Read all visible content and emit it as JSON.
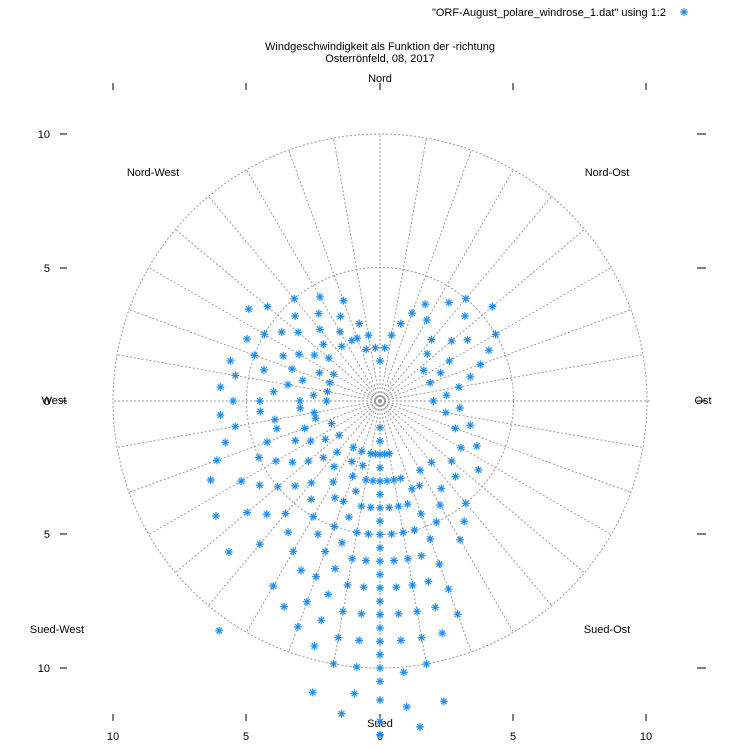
{
  "chart_data": {
    "type": "scatter",
    "coordinate_system": "polar",
    "title": "Windgeschwindigkeit als Funktion der -richtung",
    "subtitle": "Osterrönfeld, 08, 2017",
    "legend": {
      "label": "\"ORF-August_polare_windrose_1.dat\" using 1:2",
      "placement": "top-right"
    },
    "series": [
      {
        "name": "\"ORF-August_polare_windrose_1.dat\" using 1:2",
        "marker": "asterisk",
        "color": "#1f8ef1",
        "points_polar_deg_speed": [
          [
            180,
            12.5
          ],
          [
            180,
            12.0
          ],
          [
            180,
            11.2
          ],
          [
            180,
            10.5
          ],
          [
            180,
            10.0
          ],
          [
            180,
            9.5
          ],
          [
            180,
            9.0
          ],
          [
            180,
            8.5
          ],
          [
            180,
            8.0
          ],
          [
            180,
            7.5
          ],
          [
            180,
            7.0
          ],
          [
            180,
            6.5
          ],
          [
            180,
            6.0
          ],
          [
            180,
            5.5
          ],
          [
            180,
            5.0
          ],
          [
            180,
            4.5
          ],
          [
            180,
            4.0
          ],
          [
            180,
            3.5
          ],
          [
            180,
            3.0
          ],
          [
            180,
            2.5
          ],
          [
            180,
            2.0
          ],
          [
            180,
            1.5
          ],
          [
            180,
            1.0
          ],
          [
            175,
            11.5
          ],
          [
            175,
            10.2
          ],
          [
            175,
            9.0
          ],
          [
            175,
            8.0
          ],
          [
            175,
            7.0
          ],
          [
            175,
            6.0
          ],
          [
            175,
            5.0
          ],
          [
            175,
            4.0
          ],
          [
            175,
            3.0
          ],
          [
            175,
            2.0
          ],
          [
            170,
            10.0
          ],
          [
            170,
            9.0
          ],
          [
            170,
            8.0
          ],
          [
            170,
            7.0
          ],
          [
            170,
            6.0
          ],
          [
            170,
            5.0
          ],
          [
            170,
            4.0
          ],
          [
            170,
            3.0
          ],
          [
            170,
            2.0
          ],
          [
            185,
            11.0
          ],
          [
            185,
            10.0
          ],
          [
            185,
            9.0
          ],
          [
            185,
            8.0
          ],
          [
            185,
            7.0
          ],
          [
            185,
            6.0
          ],
          [
            185,
            5.0
          ],
          [
            185,
            4.0
          ],
          [
            185,
            3.0
          ],
          [
            185,
            2.0
          ],
          [
            190,
            10.0
          ],
          [
            190,
            9.0
          ],
          [
            190,
            8.0
          ],
          [
            190,
            7.0
          ],
          [
            190,
            6.0
          ],
          [
            190,
            5.0
          ],
          [
            190,
            4.0
          ],
          [
            190,
            3.0
          ],
          [
            190,
            2.0
          ],
          [
            195,
            9.5
          ],
          [
            195,
            8.5
          ],
          [
            195,
            7.5
          ],
          [
            195,
            6.5
          ],
          [
            195,
            5.5
          ],
          [
            195,
            4.5
          ],
          [
            195,
            3.5
          ],
          [
            195,
            2.5
          ],
          [
            200,
            9.0
          ],
          [
            200,
            8.0
          ],
          [
            200,
            7.0
          ],
          [
            200,
            6.0
          ],
          [
            200,
            5.0
          ],
          [
            200,
            4.0
          ],
          [
            200,
            3.0
          ],
          [
            200,
            2.0
          ],
          [
            165,
            9.0
          ],
          [
            165,
            8.0
          ],
          [
            165,
            7.0
          ],
          [
            165,
            6.0
          ],
          [
            165,
            5.0
          ],
          [
            165,
            4.0
          ],
          [
            165,
            3.0
          ],
          [
            160,
            8.5
          ],
          [
            160,
            7.5
          ],
          [
            160,
            6.5
          ],
          [
            160,
            5.5
          ],
          [
            160,
            4.5
          ],
          [
            160,
            3.5
          ],
          [
            168,
            11.5
          ],
          [
            173,
            12.3
          ],
          [
            187,
            11.8
          ],
          [
            193,
            11.2
          ],
          [
            205,
            8.5
          ],
          [
            205,
            7.0
          ],
          [
            205,
            5.5
          ],
          [
            205,
            4.0
          ],
          [
            205,
            2.5
          ],
          [
            210,
            8.0
          ],
          [
            210,
            6.5
          ],
          [
            210,
            5.0
          ],
          [
            210,
            3.5
          ],
          [
            210,
            2.0
          ],
          [
            215,
            10.5
          ],
          [
            215,
            6.0
          ],
          [
            215,
            4.5
          ],
          [
            215,
            3.0
          ],
          [
            220,
            7.0
          ],
          [
            220,
            5.5
          ],
          [
            220,
            4.0
          ],
          [
            220,
            2.5
          ],
          [
            225,
            8.0
          ],
          [
            225,
            6.0
          ],
          [
            225,
            4.5
          ],
          [
            225,
            3.0
          ],
          [
            230,
            6.5
          ],
          [
            230,
            5.0
          ],
          [
            230,
            3.5
          ],
          [
            230,
            2.0
          ],
          [
            235,
            7.5
          ],
          [
            235,
            5.5
          ],
          [
            235,
            4.0
          ],
          [
            235,
            2.5
          ],
          [
            240,
            6.0
          ],
          [
            240,
            4.5
          ],
          [
            240,
            3.0
          ],
          [
            245,
            7.0
          ],
          [
            245,
            5.0
          ],
          [
            245,
            3.5
          ],
          [
            245,
            2.0
          ],
          [
            250,
            6.5
          ],
          [
            250,
            4.5
          ],
          [
            250,
            3.0
          ],
          [
            255,
            6.0
          ],
          [
            255,
            4.0
          ],
          [
            255,
            2.5
          ],
          [
            260,
            5.5
          ],
          [
            260,
            4.0
          ],
          [
            260,
            2.5
          ],
          [
            265,
            6.0
          ],
          [
            265,
            4.5
          ],
          [
            265,
            3.0
          ],
          [
            270,
            5.5
          ],
          [
            270,
            4.5
          ],
          [
            270,
            3.0
          ],
          [
            270,
            2.0
          ],
          [
            275,
            6.0
          ],
          [
            275,
            4.0
          ],
          [
            275,
            2.5
          ],
          [
            280,
            5.5
          ],
          [
            280,
            3.5
          ],
          [
            280,
            2.0
          ],
          [
            285,
            5.8
          ],
          [
            285,
            4.5
          ],
          [
            285,
            3.0
          ],
          [
            290,
            5.0
          ],
          [
            290,
            3.5
          ],
          [
            290,
            2.0
          ],
          [
            295,
            5.5
          ],
          [
            295,
            4.0
          ],
          [
            295,
            2.5
          ],
          [
            300,
            5.0
          ],
          [
            300,
            3.5
          ],
          [
            300,
            2.0
          ],
          [
            305,
            6.0
          ],
          [
            305,
            4.5
          ],
          [
            305,
            3.0
          ],
          [
            310,
            5.5
          ],
          [
            310,
            4.0
          ],
          [
            310,
            2.5
          ],
          [
            315,
            4.5
          ],
          [
            315,
            3.0
          ],
          [
            320,
            5.0
          ],
          [
            320,
            3.5
          ],
          [
            325,
            4.0
          ],
          [
            325,
            2.5
          ],
          [
            330,
            4.5
          ],
          [
            330,
            3.0
          ],
          [
            335,
            3.5
          ],
          [
            335,
            2.5
          ],
          [
            340,
            4.0
          ],
          [
            340,
            2.5
          ],
          [
            345,
            3.0
          ],
          [
            345,
            2.0
          ],
          [
            350,
            2.5
          ],
          [
            355,
            2.0
          ],
          [
            0,
            1.5
          ],
          [
            5,
            2.0
          ],
          [
            10,
            2.5
          ],
          [
            15,
            3.0
          ],
          [
            20,
            3.5
          ],
          [
            25,
            4.0
          ],
          [
            30,
            3.5
          ],
          [
            35,
            4.5
          ],
          [
            40,
            5.0
          ],
          [
            40,
            3.0
          ],
          [
            45,
            4.5
          ],
          [
            45,
            2.5
          ],
          [
            50,
            5.5
          ],
          [
            50,
            3.5
          ],
          [
            55,
            4.0
          ],
          [
            55,
            2.0
          ],
          [
            60,
            5.0
          ],
          [
            60,
            3.0
          ],
          [
            65,
            4.5
          ],
          [
            65,
            2.5
          ],
          [
            70,
            4.0
          ],
          [
            70,
            2.0
          ],
          [
            75,
            3.5
          ],
          [
            80,
            3.0
          ],
          [
            85,
            2.5
          ],
          [
            90,
            2.0
          ],
          [
            95,
            3.0
          ],
          [
            100,
            2.5
          ],
          [
            105,
            3.5
          ],
          [
            110,
            3.0
          ],
          [
            115,
            4.0
          ],
          [
            120,
            3.5
          ],
          [
            125,
            4.5
          ],
          [
            130,
            3.5
          ],
          [
            135,
            4.0
          ],
          [
            140,
            5.0
          ],
          [
            140,
            3.0
          ],
          [
            145,
            5.5
          ],
          [
            145,
            4.0
          ],
          [
            150,
            6.0
          ],
          [
            150,
            4.5
          ],
          [
            150,
            3.0
          ],
          [
            155,
            5.0
          ],
          [
            155,
            3.5
          ]
        ]
      }
    ],
    "direction_labels": [
      {
        "angle": 0,
        "text": "Nord"
      },
      {
        "angle": 45,
        "text": "Nord-Ost"
      },
      {
        "angle": 90,
        "text": "Ost"
      },
      {
        "angle": 135,
        "text": "Sued-Ost"
      },
      {
        "angle": 180,
        "text": "Sued"
      },
      {
        "angle": 225,
        "text": "Sued-West"
      },
      {
        "angle": 270,
        "text": "West"
      },
      {
        "angle": 315,
        "text": "Nord-West"
      }
    ],
    "r_range": [
      0,
      10
    ],
    "r_grid": [
      5,
      10
    ],
    "angular_grid_step_deg": 10,
    "x_ticks": [
      "10",
      "5",
      "0",
      "5",
      "10"
    ],
    "y_ticks": [
      "10",
      "5",
      "0",
      "5",
      "10"
    ]
  }
}
